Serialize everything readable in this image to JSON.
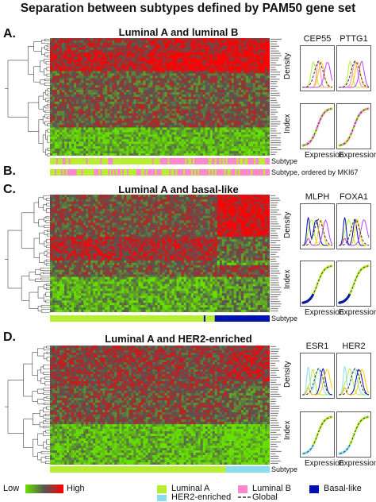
{
  "figure_title": "Separation between subtypes defined by PAM50 gene set",
  "colors": {
    "low": "#66e000",
    "mid": "#555555",
    "high": "#ff0000",
    "luminal_a": "#b8ee30",
    "luminal_b": "#ff88cc",
    "basal_like": "#0010b0",
    "her2_enriched": "#88ddf0",
    "global": "#333333"
  },
  "panels": [
    {
      "letter": "A.",
      "title": "Luminal A and luminal B",
      "genes": [
        "CEP55",
        "PTTG1"
      ]
    },
    {
      "letter": "B.",
      "title": "Subtype, ordered by MKI67"
    },
    {
      "letter": "C.",
      "title": "Luminal A and basal-like",
      "genes": [
        "MLPH",
        "FOXA1"
      ]
    },
    {
      "letter": "D.",
      "title": "Luminal A and HER2-enriched",
      "genes": [
        "ESR1",
        "HER2"
      ]
    }
  ],
  "axis": {
    "density": "Density",
    "index": "Index",
    "expression": "Expression"
  },
  "subtype_label": "Subtype",
  "legend": {
    "low": "Low",
    "high": "High",
    "items": [
      "Luminal A",
      "Luminal B",
      "Basal-like",
      "HER2-enriched",
      "Global"
    ]
  }
}
